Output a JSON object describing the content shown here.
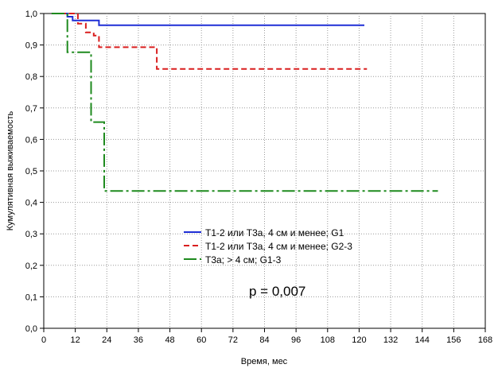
{
  "chart_data": {
    "type": "line",
    "title": "",
    "xlabel": "Время, мес",
    "ylabel": "Кумулятивная выживаемость",
    "xlim": [
      0,
      168
    ],
    "ylim": [
      0,
      1.0
    ],
    "xticks": [
      0,
      12,
      24,
      36,
      48,
      60,
      72,
      84,
      96,
      108,
      120,
      132,
      144,
      156,
      168
    ],
    "yticks": [
      "0,0",
      "0,1",
      "0,2",
      "0,3",
      "0,4",
      "0,5",
      "0,6",
      "0,7",
      "0,8",
      "0,9",
      "1,0"
    ],
    "grid": true,
    "legend_position": "center",
    "annotation": "p = 0,007",
    "series": [
      {
        "name": "T1-2 или T3a, 4 см и менее; G1",
        "color": "#1f2fd6",
        "dash": "solid",
        "points": [
          [
            3,
            1.0
          ],
          [
            9,
            1.0
          ],
          [
            9,
            0.99
          ],
          [
            11,
            0.99
          ],
          [
            11,
            0.978
          ],
          [
            12,
            0.978
          ],
          [
            12,
            0.978
          ],
          [
            21,
            0.978
          ],
          [
            21,
            0.963
          ],
          [
            122,
            0.963
          ]
        ]
      },
      {
        "name": "T1-2 или T3a, 4 см и менее; G2-3",
        "color": "#d91e1e",
        "dash": "dashed",
        "points": [
          [
            3,
            1.0
          ],
          [
            13,
            1.0
          ],
          [
            13,
            0.968
          ],
          [
            16,
            0.968
          ],
          [
            16,
            0.94
          ],
          [
            19,
            0.94
          ],
          [
            19,
            0.93
          ],
          [
            21,
            0.93
          ],
          [
            21,
            0.893
          ],
          [
            43,
            0.893
          ],
          [
            43,
            0.824
          ],
          [
            123,
            0.824
          ]
        ]
      },
      {
        "name": "T3a; > 4 см; G1-3",
        "color": "#1e8a1e",
        "dash": "dashdot",
        "points": [
          [
            3,
            1.0
          ],
          [
            9,
            1.0
          ],
          [
            9,
            0.877
          ],
          [
            18,
            0.877
          ],
          [
            18,
            0.655
          ],
          [
            23,
            0.655
          ],
          [
            23,
            0.436
          ],
          [
            150,
            0.436
          ]
        ]
      }
    ]
  }
}
